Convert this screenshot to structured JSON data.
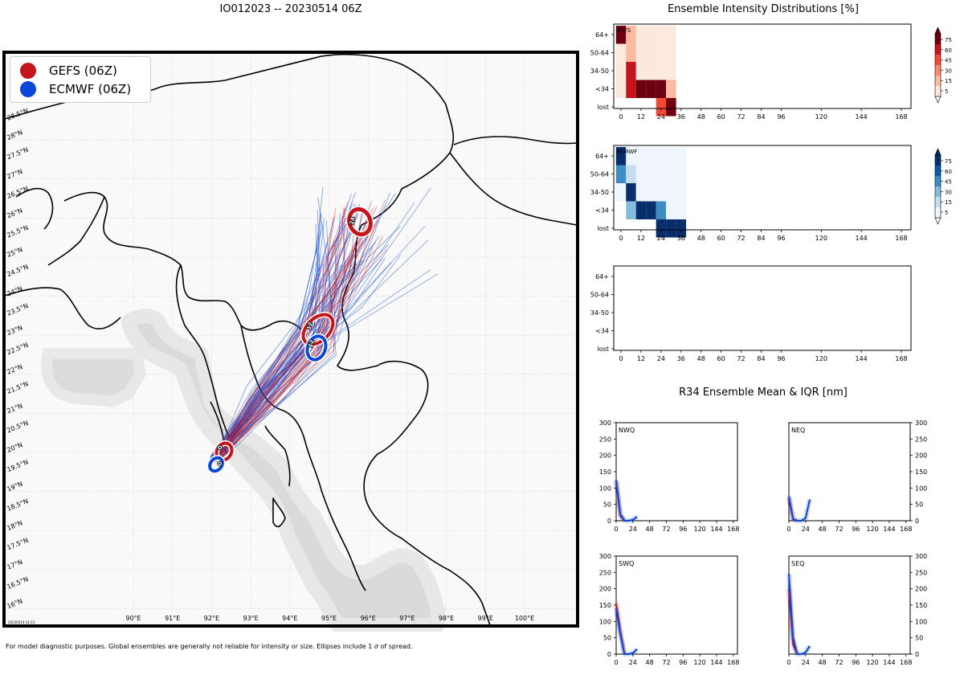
{
  "main_title": "IO012023 -- 20230514 06Z",
  "legend": [
    {
      "label": "GEFS (06Z)",
      "color": "#c4141c"
    },
    {
      "label": "ECMWF (06Z)",
      "color": "#0a47d6"
    }
  ],
  "map": {
    "lon_labels": [
      "90°E",
      "91°E",
      "92°E",
      "93°E",
      "94°E",
      "95°E",
      "96°E",
      "97°E",
      "98°E",
      "99°E",
      "100°E"
    ],
    "lat_labels": [
      "16°N",
      "16.5°N",
      "17°N",
      "17.5°N",
      "18°N",
      "18.5°N",
      "19°N",
      "19.5°N",
      "20°N",
      "20.5°N",
      "21°N",
      "21.5°N",
      "22°N",
      "22.5°N",
      "23°N",
      "23.5°N",
      "24°N",
      "24.5°N",
      "25°N",
      "25.5°N",
      "26°N",
      "26.5°N",
      "27°N",
      "27.5°N",
      "28°N",
      "28.5°N"
    ],
    "stamp": "20230514 14:13",
    "ellipse_labels": {
      "gefs": [
        "0",
        "12",
        "24"
      ],
      "ecmwf": [
        "0",
        "12"
      ]
    }
  },
  "chart_data": [
    {
      "type": "heatmap",
      "title": "Ensemble Intensity Distributions [%]",
      "panel_label": "GEFS",
      "x_ticks": [
        "0",
        "12",
        "24",
        "36",
        "48",
        "60",
        "72",
        "84",
        "96",
        "120",
        "144",
        "168"
      ],
      "y_categories": [
        "64+",
        "50-64",
        "34-50",
        "<34",
        "lost"
      ],
      "colorbar_ticks": [
        "5",
        "15",
        "30",
        "45",
        "60",
        "75"
      ],
      "hours": [
        0,
        6,
        12,
        18,
        24,
        30
      ],
      "cells_percent": {
        "64+": [
          80,
          10,
          5,
          5,
          5,
          5
        ],
        "50-64": [
          5,
          12,
          5,
          5,
          5,
          5
        ],
        "34-50": [
          5,
          60,
          5,
          5,
          5,
          5
        ],
        "<34": [
          5,
          60,
          100,
          100,
          100,
          15
        ],
        "lost": [
          0,
          0,
          0,
          0,
          45,
          100
        ]
      }
    },
    {
      "type": "heatmap",
      "panel_label": "ECMWF",
      "x_ticks": [
        "0",
        "12",
        "24",
        "36",
        "48",
        "60",
        "72",
        "84",
        "96",
        "120",
        "144",
        "168"
      ],
      "y_categories": [
        "64+",
        "50-64",
        "34-50",
        "<34",
        "lost"
      ],
      "colorbar_ticks": [
        "5",
        "15",
        "30",
        "45",
        "60",
        "75"
      ],
      "hours": [
        0,
        6,
        12,
        18,
        24,
        30,
        36
      ],
      "cells_percent": {
        "64+": [
          70,
          5,
          5,
          5,
          5,
          5,
          5
        ],
        "50-64": [
          40,
          10,
          5,
          5,
          5,
          5,
          5
        ],
        "34-50": [
          5,
          80,
          5,
          5,
          5,
          5,
          5
        ],
        "<34": [
          0,
          25,
          100,
          100,
          40,
          5,
          5
        ],
        "lost": [
          0,
          0,
          0,
          0,
          80,
          100,
          100
        ]
      }
    },
    {
      "type": "heatmap",
      "panel_label": "",
      "x_ticks": [
        "0",
        "12",
        "24",
        "36",
        "48",
        "60",
        "72",
        "84",
        "96",
        "120",
        "144",
        "168"
      ],
      "y_categories": [
        "64+",
        "50-64",
        "34-50",
        "<34",
        "lost"
      ],
      "cells_percent": {}
    },
    {
      "type": "line",
      "title": "R34 Ensemble Mean & IQR [nm]",
      "panel_label": "NWQ",
      "x_ticks": [
        "0",
        "24",
        "48",
        "72",
        "96",
        "120",
        "144",
        "168"
      ],
      "y_ticks": [
        "0",
        "50",
        "100",
        "150",
        "200",
        "250",
        "300"
      ],
      "ylim": [
        0,
        300
      ],
      "xlim": [
        0,
        174
      ],
      "series": [
        {
          "name": "GEFS",
          "x": [
            0,
            6,
            12
          ],
          "y": [
            120,
            15,
            0
          ]
        },
        {
          "name": "ECMWF",
          "x": [
            0,
            6,
            12,
            18,
            24,
            30
          ],
          "y": [
            125,
            20,
            0,
            0,
            3,
            12
          ]
        }
      ]
    },
    {
      "type": "line",
      "panel_label": "NEQ",
      "x_ticks": [
        "0",
        "24",
        "48",
        "72",
        "96",
        "120",
        "144",
        "168"
      ],
      "y_ticks": [
        "0",
        "50",
        "100",
        "150",
        "200",
        "250",
        "300"
      ],
      "ylim": [
        0,
        300
      ],
      "xlim": [
        0,
        174
      ],
      "series": [
        {
          "name": "GEFS",
          "x": [
            0,
            6,
            12
          ],
          "y": [
            70,
            5,
            0
          ]
        },
        {
          "name": "ECMWF",
          "x": [
            0,
            6,
            12,
            18,
            24,
            30
          ],
          "y": [
            75,
            5,
            0,
            0,
            8,
            65
          ]
        }
      ]
    },
    {
      "type": "line",
      "panel_label": "SWQ",
      "x_ticks": [
        "0",
        "24",
        "48",
        "72",
        "96",
        "120",
        "144",
        "168"
      ],
      "y_ticks": [
        "0",
        "50",
        "100",
        "150",
        "200",
        "250",
        "300"
      ],
      "ylim": [
        0,
        300
      ],
      "xlim": [
        0,
        174
      ],
      "series": [
        {
          "name": "GEFS",
          "x": [
            0,
            6,
            12
          ],
          "y": [
            155,
            70,
            0
          ]
        },
        {
          "name": "ECMWF",
          "x": [
            0,
            6,
            12,
            18,
            24,
            30
          ],
          "y": [
            140,
            60,
            0,
            0,
            3,
            15
          ]
        }
      ]
    },
    {
      "type": "line",
      "panel_label": "SEQ",
      "x_ticks": [
        "0",
        "24",
        "48",
        "72",
        "96",
        "120",
        "144",
        "168"
      ],
      "y_ticks": [
        "0",
        "50",
        "100",
        "150",
        "200",
        "250",
        "300"
      ],
      "ylim": [
        0,
        300
      ],
      "xlim": [
        0,
        174
      ],
      "series": [
        {
          "name": "GEFS",
          "x": [
            0,
            6,
            12
          ],
          "y": [
            200,
            30,
            0
          ]
        },
        {
          "name": "ECMWF",
          "x": [
            0,
            6,
            12,
            18,
            24,
            30
          ],
          "y": [
            245,
            50,
            0,
            0,
            5,
            25
          ]
        }
      ]
    }
  ],
  "footnote_pre": "For model diagnostic purposes. Global ensembles are generally not reliable for intensity or size. Ellipses include 1 ",
  "footnote_sigma": "σ",
  "footnote_post": " of spread."
}
